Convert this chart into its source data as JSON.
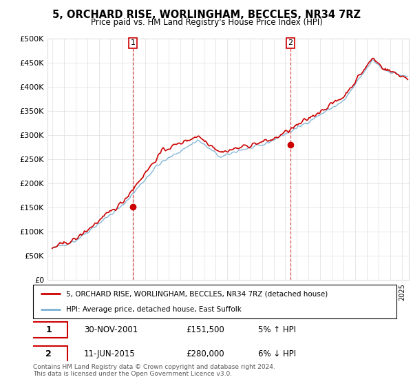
{
  "title": "5, ORCHARD RISE, WORLINGHAM, BECCLES, NR34 7RZ",
  "subtitle": "Price paid vs. HM Land Registry's House Price Index (HPI)",
  "legend_line1": "5, ORCHARD RISE, WORLINGHAM, BECCLES, NR34 7RZ (detached house)",
  "legend_line2": "HPI: Average price, detached house, East Suffolk",
  "annotation1_date": "30-NOV-2001",
  "annotation1_price": "£151,500",
  "annotation1_hpi": "5% ↑ HPI",
  "annotation2_date": "11-JUN-2015",
  "annotation2_price": "£280,000",
  "annotation2_hpi": "6% ↓ HPI",
  "footer": "Contains HM Land Registry data © Crown copyright and database right 2024.\nThis data is licensed under the Open Government Licence v3.0.",
  "hpi_color": "#7ab0d4",
  "price_color": "#cc0000",
  "vline_color": "#cc0000",
  "ylim": [
    0,
    500000
  ],
  "yticks": [
    0,
    50000,
    100000,
    150000,
    200000,
    250000,
    300000,
    350000,
    400000,
    450000,
    500000
  ],
  "sale1_year": 2001.917,
  "sale1_value": 151500,
  "sale2_year": 2015.44,
  "sale2_value": 280000,
  "bg_color": "#ffffff",
  "grid_color": "#dddddd"
}
